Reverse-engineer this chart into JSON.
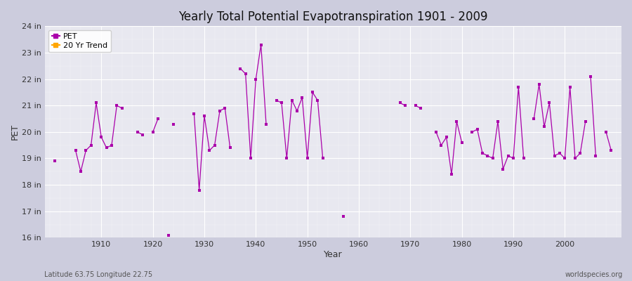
{
  "title": "Yearly Total Potential Evapotranspiration 1901 - 2009",
  "xlabel": "Year",
  "ylabel": "PET",
  "subtitle_left": "Latitude 63.75 Longitude 22.75",
  "subtitle_right": "worldspecies.org",
  "pet_color": "#aa00aa",
  "trend_color": "#FFA500",
  "fig_bg_color": "#ccccdd",
  "plot_bg_color": "#e8e8f0",
  "ylim": [
    16,
    24
  ],
  "yticks": [
    16,
    17,
    18,
    19,
    20,
    21,
    22,
    23,
    24
  ],
  "ytick_labels": [
    "16 in",
    "17 in",
    "18 in",
    "19 in",
    "20 in",
    "21 in",
    "22 in",
    "23 in",
    "24 in"
  ],
  "xlim": [
    1899,
    2011
  ],
  "xticks": [
    1910,
    1920,
    1930,
    1940,
    1950,
    1960,
    1970,
    1980,
    1990,
    2000
  ],
  "segments": [
    {
      "years": [
        1901
      ],
      "values": [
        18.9
      ]
    },
    {
      "years": [
        1905,
        1906,
        1907,
        1908,
        1909,
        1910,
        1911,
        1912,
        1913,
        1914
      ],
      "values": [
        19.3,
        18.5,
        19.3,
        19.5,
        21.1,
        19.8,
        19.4,
        19.5,
        21.0,
        20.9
      ]
    },
    {
      "years": [
        1917,
        1918
      ],
      "values": [
        20.0,
        19.9
      ]
    },
    {
      "years": [
        1920,
        1921
      ],
      "values": [
        20.0,
        20.5
      ]
    },
    {
      "years": [
        1924
      ],
      "values": [
        20.3
      ]
    },
    {
      "years": [
        1928,
        1929,
        1930,
        1931,
        1932,
        1933,
        1934,
        1935
      ],
      "values": [
        20.7,
        17.8,
        20.6,
        19.3,
        19.5,
        20.8,
        20.9,
        19.4
      ]
    },
    {
      "years": [
        1937,
        1938,
        1939,
        1940,
        1941,
        1942
      ],
      "values": [
        22.4,
        22.2,
        19.0,
        22.0,
        23.3,
        20.3
      ]
    },
    {
      "years": [
        1944,
        1945,
        1946,
        1947,
        1948,
        1949,
        1950,
        1951,
        1952,
        1953
      ],
      "values": [
        21.2,
        21.1,
        19.0,
        21.2,
        20.8,
        21.3,
        19.0,
        21.5,
        21.2,
        19.0
      ]
    },
    {
      "years": [
        1957
      ],
      "values": [
        16.8
      ]
    },
    {
      "years": [
        1923
      ],
      "values": [
        16.1
      ]
    },
    {
      "years": [
        1968,
        1969
      ],
      "values": [
        21.1,
        21.0
      ]
    },
    {
      "years": [
        1971,
        1972
      ],
      "values": [
        21.0,
        20.9
      ]
    },
    {
      "years": [
        1975,
        1976,
        1977,
        1978,
        1979,
        1980
      ],
      "values": [
        20.0,
        19.5,
        19.8,
        18.4,
        20.4,
        19.6
      ]
    },
    {
      "years": [
        1982,
        1983,
        1984,
        1985,
        1986,
        1987,
        1988,
        1989,
        1990,
        1991,
        1992
      ],
      "values": [
        20.0,
        20.1,
        19.2,
        19.1,
        19.0,
        20.4,
        18.6,
        19.1,
        19.0,
        21.7,
        19.0
      ]
    },
    {
      "years": [
        1994,
        1995,
        1996,
        1997,
        1998,
        1999,
        2000,
        2001,
        2002,
        2003,
        2004
      ],
      "values": [
        20.5,
        21.8,
        20.2,
        21.1,
        19.1,
        19.2,
        19.0,
        21.7,
        19.0,
        19.2,
        20.4
      ]
    },
    {
      "years": [
        2005,
        2006
      ],
      "values": [
        22.1,
        19.1
      ]
    },
    {
      "years": [
        2008,
        2009
      ],
      "values": [
        20.0,
        19.3
      ]
    }
  ]
}
